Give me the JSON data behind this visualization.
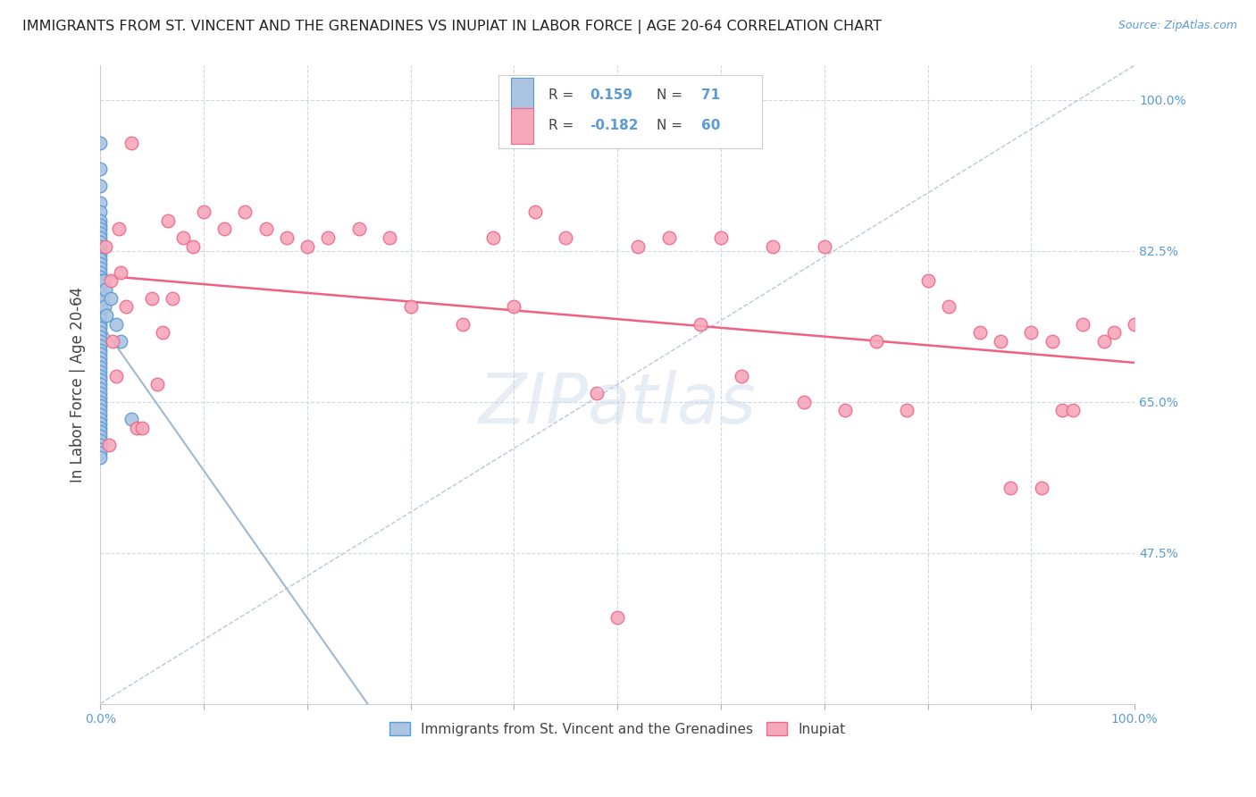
{
  "title": "IMMIGRANTS FROM ST. VINCENT AND THE GRENADINES VS INUPIAT IN LABOR FORCE | AGE 20-64 CORRELATION CHART",
  "source": "Source: ZipAtlas.com",
  "ylabel": "In Labor Force | Age 20-64",
  "xlim": [
    0.0,
    1.0
  ],
  "ylim": [
    0.3,
    1.04
  ],
  "ytick_values": [
    0.475,
    0.65,
    0.825,
    1.0
  ],
  "ytick_labels": [
    "47.5%",
    "65.0%",
    "82.5%",
    "100.0%"
  ],
  "blue_R": 0.159,
  "blue_N": 71,
  "pink_R": -0.182,
  "pink_N": 60,
  "blue_color": "#aac4e2",
  "pink_color": "#f5a8bc",
  "blue_edge": "#5b9bd5",
  "pink_edge": "#f06888",
  "trendline_blue_color": "#a0b8d0",
  "trendline_pink_color": "#f06080",
  "diagonal_color": "#b8c8d8",
  "legend_label_blue": "Immigrants from St. Vincent and the Grenadines",
  "legend_label_pink": "Inupiat",
  "watermark": "ZIPatlas",
  "blue_points_x": [
    0.0,
    0.0,
    0.0,
    0.0,
    0.0,
    0.0,
    0.0,
    0.0,
    0.0,
    0.0,
    0.0,
    0.0,
    0.0,
    0.0,
    0.0,
    0.0,
    0.0,
    0.0,
    0.0,
    0.0,
    0.0,
    0.0,
    0.0,
    0.0,
    0.0,
    0.0,
    0.0,
    0.0,
    0.0,
    0.0,
    0.0,
    0.0,
    0.0,
    0.0,
    0.0,
    0.0,
    0.0,
    0.0,
    0.0,
    0.0,
    0.0,
    0.0,
    0.0,
    0.0,
    0.0,
    0.0,
    0.0,
    0.0,
    0.0,
    0.0,
    0.0,
    0.0,
    0.0,
    0.0,
    0.0,
    0.0,
    0.0,
    0.0,
    0.0,
    0.0,
    0.0,
    0.001,
    0.002,
    0.003,
    0.004,
    0.005,
    0.006,
    0.01,
    0.015,
    0.02,
    0.03
  ],
  "blue_points_y": [
    0.95,
    0.92,
    0.9,
    0.88,
    0.87,
    0.86,
    0.855,
    0.85,
    0.845,
    0.84,
    0.835,
    0.83,
    0.825,
    0.82,
    0.815,
    0.81,
    0.805,
    0.8,
    0.795,
    0.79,
    0.785,
    0.78,
    0.775,
    0.77,
    0.765,
    0.76,
    0.755,
    0.75,
    0.745,
    0.74,
    0.735,
    0.73,
    0.725,
    0.72,
    0.715,
    0.71,
    0.705,
    0.7,
    0.695,
    0.69,
    0.685,
    0.68,
    0.675,
    0.67,
    0.665,
    0.66,
    0.655,
    0.65,
    0.645,
    0.64,
    0.635,
    0.63,
    0.625,
    0.62,
    0.615,
    0.61,
    0.605,
    0.6,
    0.595,
    0.59,
    0.585,
    0.76,
    0.77,
    0.79,
    0.76,
    0.78,
    0.75,
    0.77,
    0.74,
    0.72,
    0.63
  ],
  "pink_points_x": [
    0.005,
    0.008,
    0.01,
    0.012,
    0.015,
    0.018,
    0.02,
    0.025,
    0.03,
    0.035,
    0.04,
    0.05,
    0.055,
    0.06,
    0.065,
    0.07,
    0.08,
    0.09,
    0.1,
    0.12,
    0.14,
    0.16,
    0.18,
    0.2,
    0.22,
    0.25,
    0.28,
    0.3,
    0.35,
    0.38,
    0.4,
    0.42,
    0.45,
    0.48,
    0.5,
    0.52,
    0.55,
    0.58,
    0.6,
    0.62,
    0.65,
    0.68,
    0.7,
    0.72,
    0.75,
    0.78,
    0.8,
    0.82,
    0.85,
    0.87,
    0.88,
    0.9,
    0.91,
    0.92,
    0.93,
    0.94,
    0.95,
    0.97,
    0.98,
    1.0
  ],
  "pink_points_y": [
    0.83,
    0.6,
    0.79,
    0.72,
    0.68,
    0.85,
    0.8,
    0.76,
    0.95,
    0.62,
    0.62,
    0.77,
    0.67,
    0.73,
    0.86,
    0.77,
    0.84,
    0.83,
    0.87,
    0.85,
    0.87,
    0.85,
    0.84,
    0.83,
    0.84,
    0.85,
    0.84,
    0.76,
    0.74,
    0.84,
    0.76,
    0.87,
    0.84,
    0.66,
    0.4,
    0.83,
    0.84,
    0.74,
    0.84,
    0.68,
    0.83,
    0.65,
    0.83,
    0.64,
    0.72,
    0.64,
    0.79,
    0.76,
    0.73,
    0.72,
    0.55,
    0.73,
    0.55,
    0.72,
    0.64,
    0.64,
    0.74,
    0.72,
    0.73,
    0.74
  ]
}
